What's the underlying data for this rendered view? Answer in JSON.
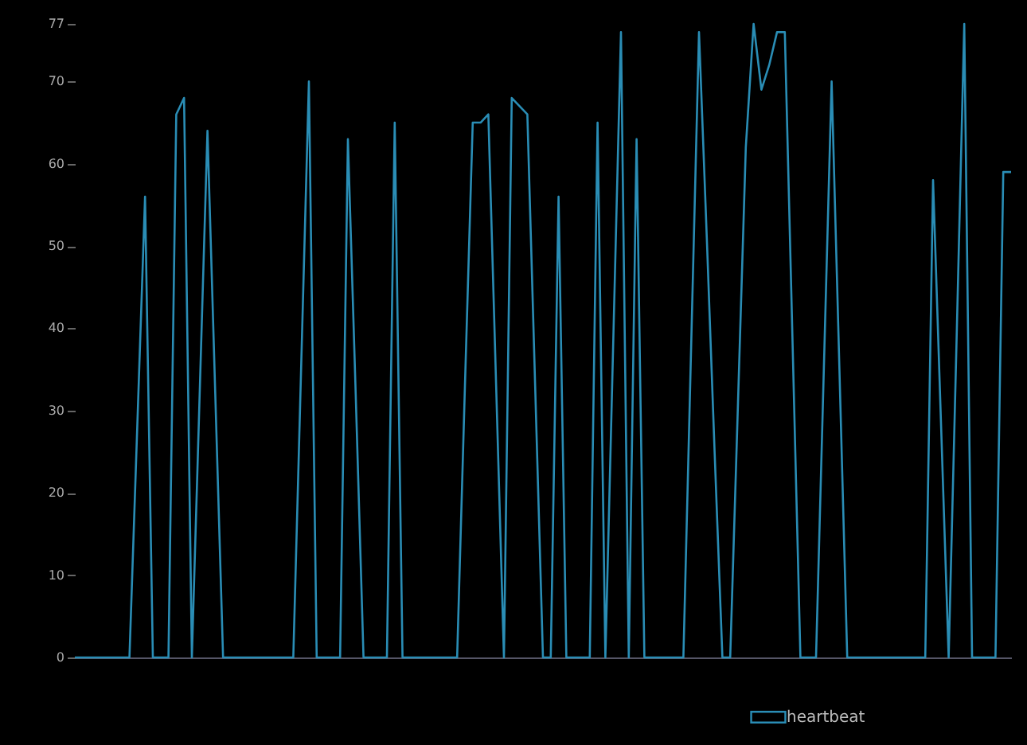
{
  "chart_data": {
    "type": "line",
    "categories": [
      null,
      null,
      null,
      null,
      null,
      null,
      null,
      null,
      null,
      null,
      null,
      null,
      null,
      null,
      null,
      null,
      null,
      null,
      null,
      null,
      null,
      null,
      null,
      null,
      null,
      null,
      null,
      null,
      null,
      null,
      null,
      null,
      null,
      null,
      null,
      null,
      null,
      null,
      null,
      null,
      null,
      null,
      null,
      null,
      null,
      null,
      null,
      null,
      null,
      null,
      null,
      null,
      null,
      null,
      null,
      null,
      null,
      null,
      null,
      null,
      null,
      null,
      null,
      null,
      null,
      null,
      null,
      null,
      null,
      null,
      null,
      null,
      null,
      null,
      null,
      null,
      null,
      null,
      null,
      null,
      null,
      null,
      null,
      null,
      null,
      null,
      null,
      null,
      null,
      null,
      null,
      null,
      null,
      null,
      null,
      null,
      null,
      null,
      null,
      null,
      null,
      null,
      null,
      null,
      null,
      null,
      null,
      null,
      null,
      null,
      null,
      null,
      null,
      null,
      null,
      null,
      null,
      null,
      null,
      null,
      null
    ],
    "series": [
      {
        "name": "heartbeat",
        "color": "#2a8db5",
        "values": [
          0,
          0,
          0,
          0,
          0,
          0,
          0,
          0,
          28,
          56,
          0,
          0,
          0,
          66,
          68,
          0,
          32,
          64,
          32,
          0,
          0,
          0,
          0,
          0,
          0,
          0,
          0,
          0,
          0,
          35,
          70,
          0,
          0,
          0,
          0,
          63,
          32,
          0,
          0,
          0,
          0,
          65,
          0,
          0,
          0,
          0,
          0,
          0,
          0,
          0,
          33,
          65,
          65,
          66,
          33,
          0,
          68,
          67,
          66,
          33,
          0,
          0,
          56,
          0,
          0,
          0,
          0,
          65,
          0,
          38,
          76,
          0,
          63,
          0,
          0,
          0,
          0,
          0,
          0,
          38,
          76,
          51,
          25,
          0,
          0,
          31,
          62,
          77,
          69,
          72,
          76,
          76,
          38,
          0,
          0,
          0,
          35,
          70,
          35,
          0,
          0,
          0,
          0,
          0,
          0,
          0,
          0,
          0,
          0,
          0,
          58,
          29,
          0,
          38,
          77,
          0,
          0,
          0,
          0,
          59,
          59
        ]
      }
    ],
    "ylim": [
      0,
      77
    ],
    "yticks": [
      0,
      10,
      20,
      30,
      40,
      50,
      60,
      70,
      77
    ],
    "legend": "bottom right",
    "grid": false,
    "marker": "none",
    "line_style": "solid"
  }
}
